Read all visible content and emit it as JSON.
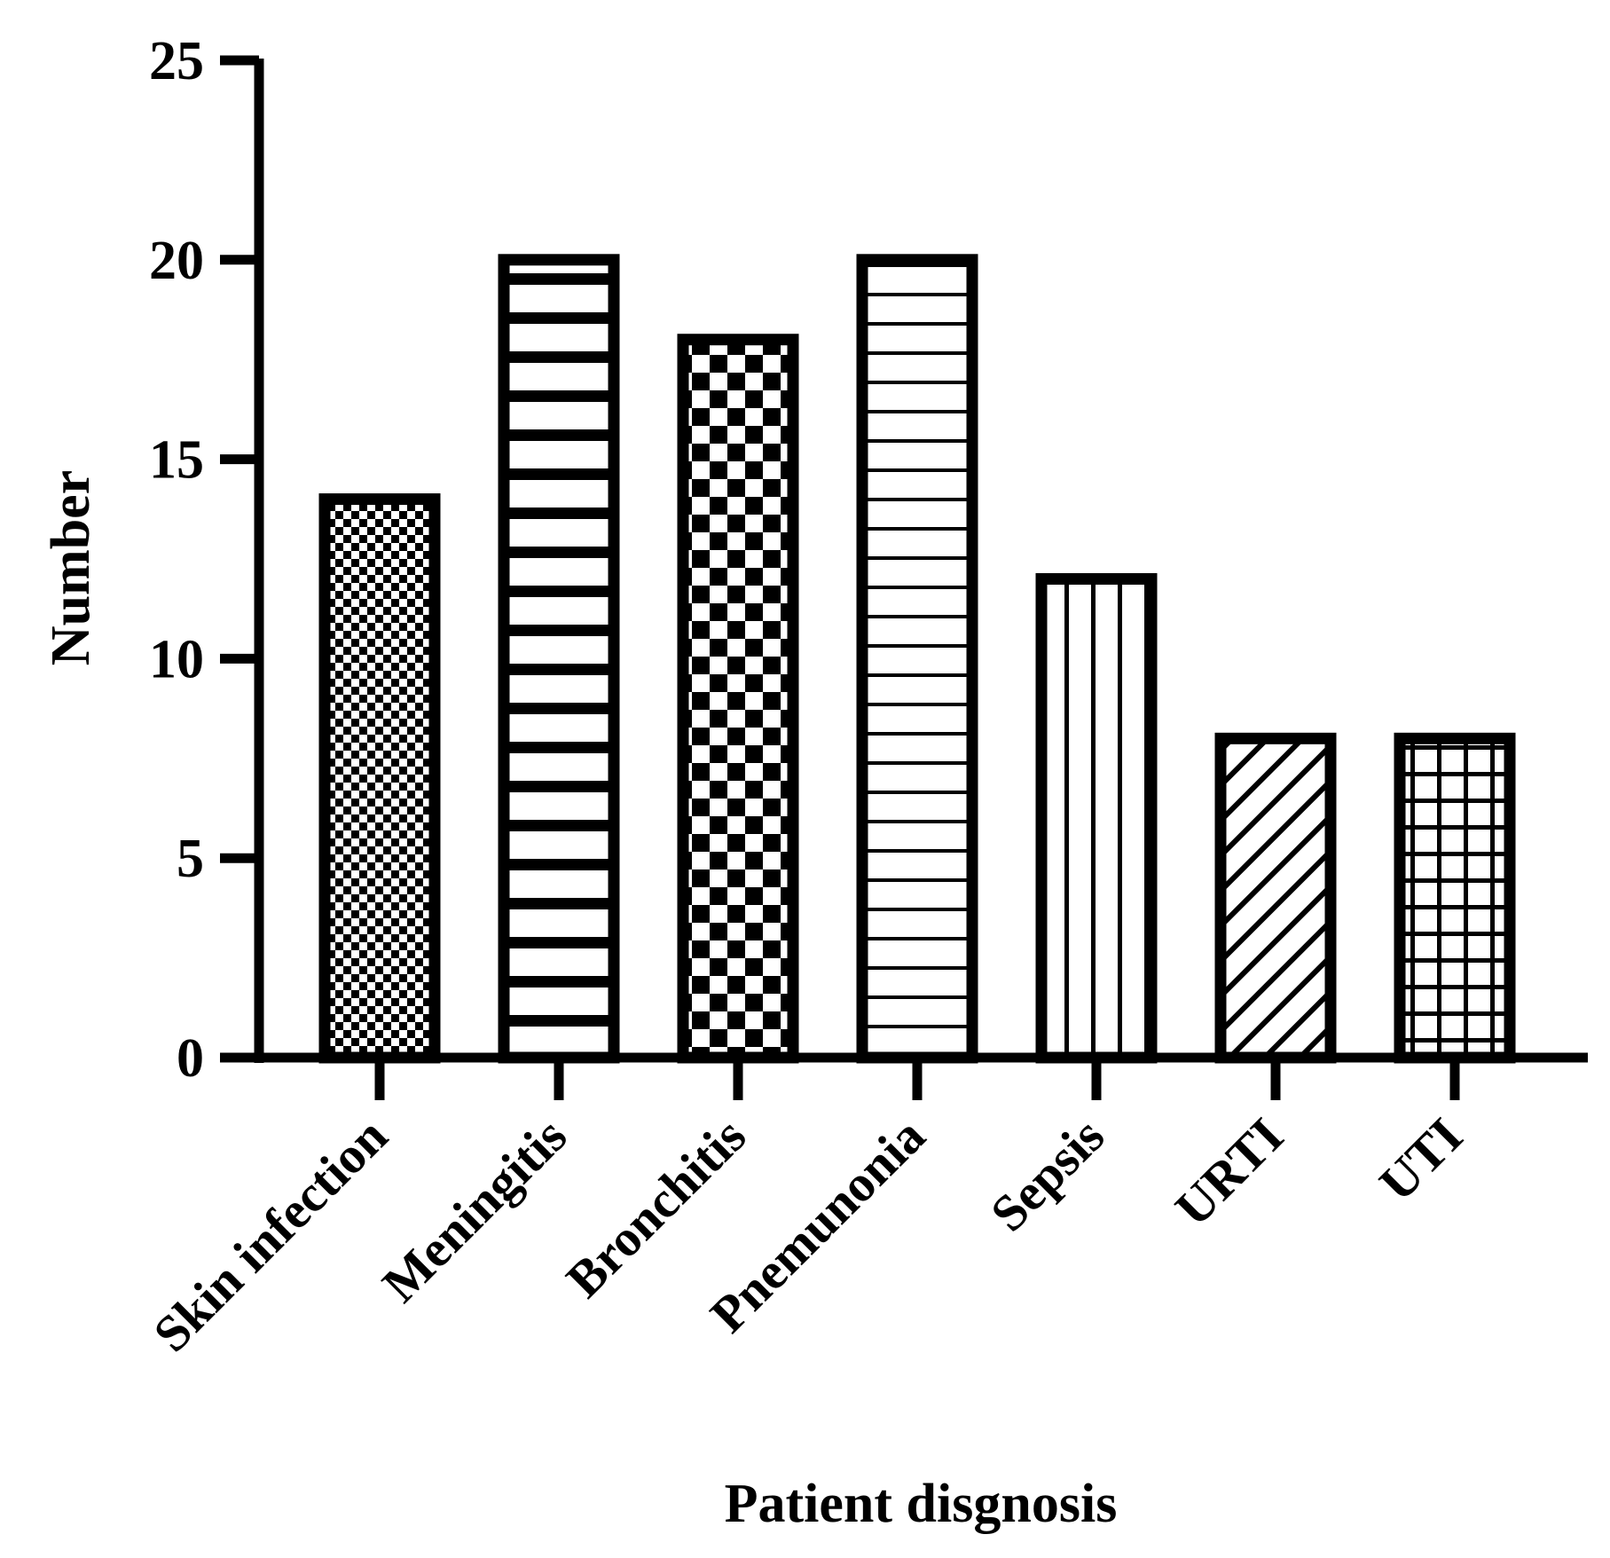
{
  "chart_data": {
    "type": "bar",
    "title": "",
    "xlabel": "Patient disgnosis",
    "ylabel": "Number",
    "ylim": [
      0,
      25
    ],
    "yticks": [
      0,
      5,
      10,
      15,
      20,
      25
    ],
    "grid": false,
    "legend": "none",
    "categories": [
      "Skin infection",
      "Meningitis",
      "Bronchitis",
      "Pnemunonia",
      "Sepsis",
      "URTI",
      "UTI"
    ],
    "values": [
      14,
      20,
      18,
      20,
      12,
      8,
      8
    ],
    "fill_patterns": [
      "small-checker",
      "thick-horizontal",
      "large-checker",
      "thin-horizontal",
      "vertical",
      "diagonal",
      "grid"
    ],
    "colors": {
      "stroke": "#000000",
      "fill": "#ffffff"
    }
  }
}
